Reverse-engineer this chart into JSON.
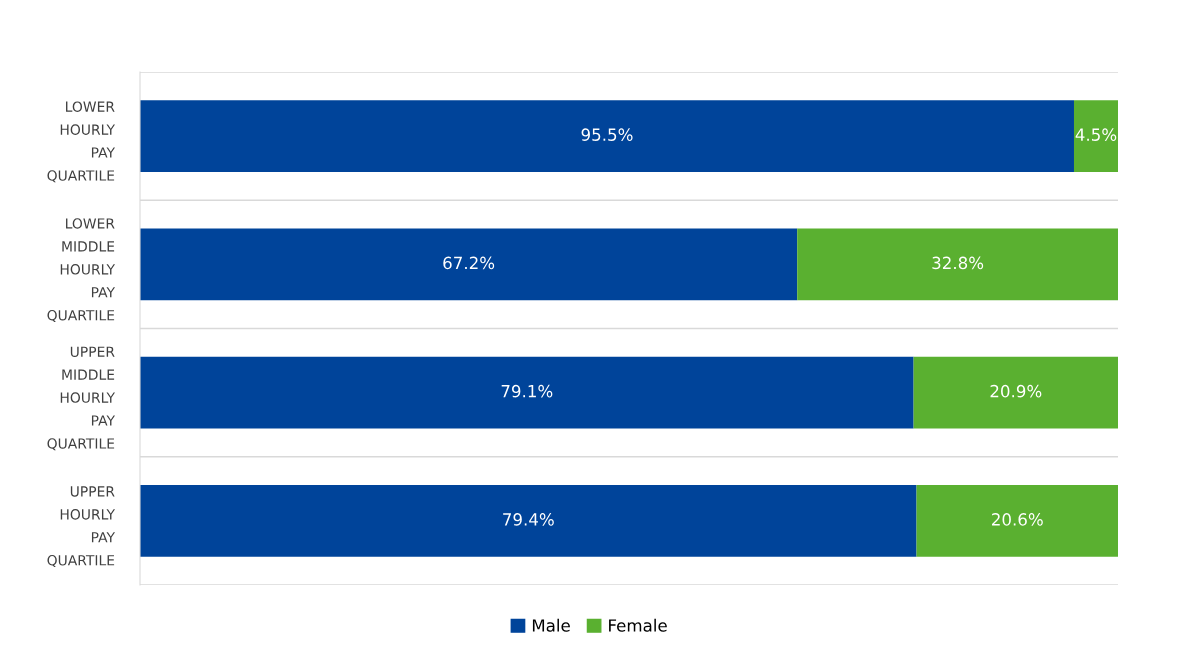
{
  "chart_data": {
    "type": "bar",
    "orientation": "horizontal",
    "stacked": true,
    "categories": [
      "LOWER HOURLY PAY QUARTILE",
      "LOWER MIDDLE HOURLY PAY QUARTILE",
      "UPPER MIDDLE HOURLY PAY QUARTILE",
      "UPPER HOURLY PAY QUARTILE"
    ],
    "series": [
      {
        "name": "Male",
        "color": "#00449a",
        "values": [
          95.5,
          67.2,
          79.1,
          79.4
        ],
        "value_labels": [
          "95.5%",
          "67.2%",
          "79.1%",
          "79.4%"
        ]
      },
      {
        "name": "Female",
        "color": "#5ab030",
        "values": [
          4.5,
          32.8,
          20.9,
          20.6
        ],
        "value_labels": [
          "4.5%",
          "32.8%",
          "20.9%",
          "20.6%"
        ]
      }
    ],
    "xlim": [
      0,
      100
    ],
    "tick_labels": "y",
    "grid": "y",
    "legend": "bottom"
  }
}
